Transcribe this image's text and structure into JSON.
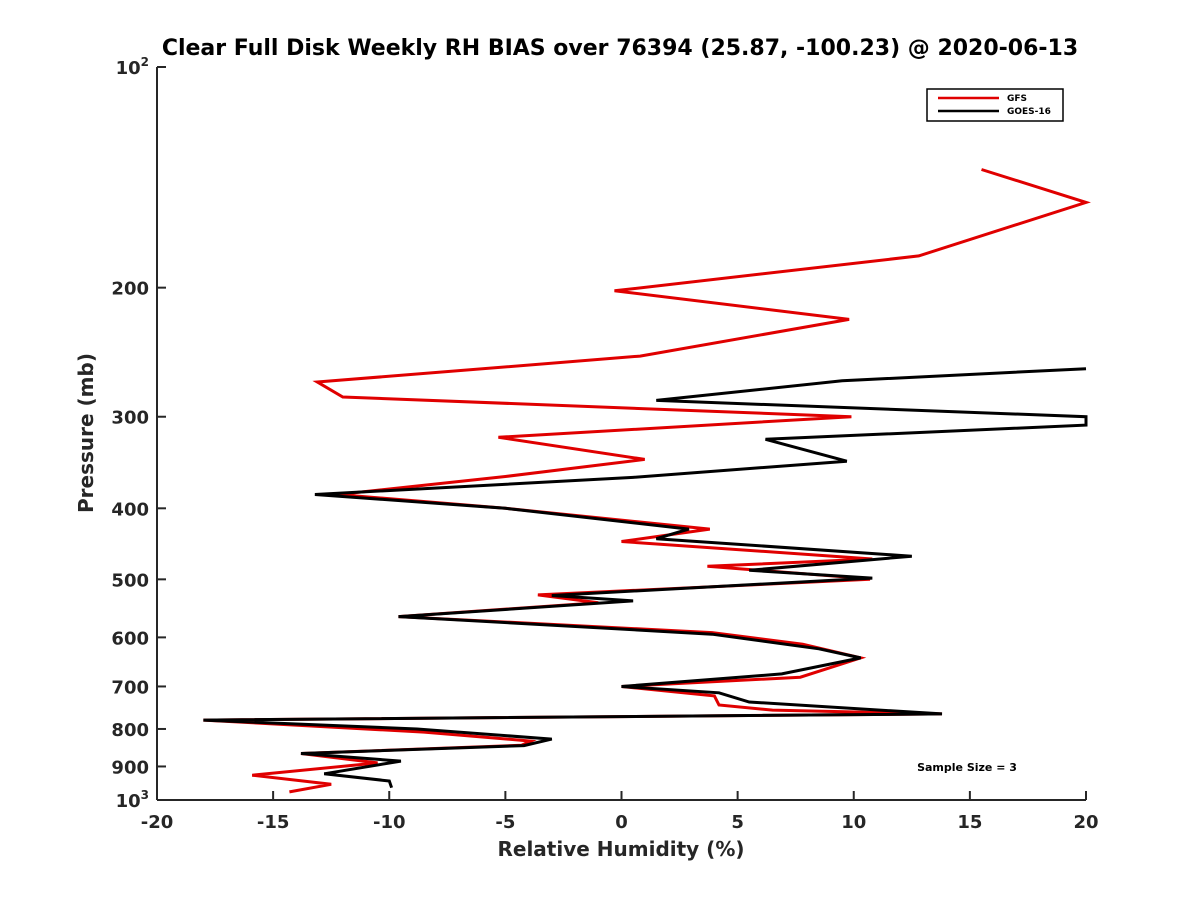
{
  "chart_data": {
    "type": "line",
    "title": "Clear Full Disk Weekly RH BIAS over 76394 (25.87, -100.23) @ 2020-06-13",
    "xlabel": "Relative Humidity (%)",
    "ylabel": "Pressure (mb)",
    "xlim": [
      -20,
      20
    ],
    "ylim": [
      100,
      1000
    ],
    "yscale": "log",
    "y_reversed": true,
    "x_ticks": [
      "-20",
      "-15",
      "-10",
      "-5",
      "0",
      "5",
      "10",
      "15",
      "20"
    ],
    "y_ticks": [
      {
        "value": 100,
        "base": "10",
        "exp": "2"
      },
      {
        "value": 200,
        "label": "200"
      },
      {
        "value": 300,
        "label": "300"
      },
      {
        "value": 400,
        "label": "400"
      },
      {
        "value": 500,
        "label": "500"
      },
      {
        "value": 600,
        "label": "600"
      },
      {
        "value": 700,
        "label": "700"
      },
      {
        "value": 800,
        "label": "800"
      },
      {
        "value": 900,
        "label": "900"
      },
      {
        "value": 1000,
        "base": "10",
        "exp": "3"
      }
    ],
    "legend_position": "top-right",
    "annotation": "Sample Size = 3",
    "series": [
      {
        "name": "GFS",
        "color": "#e00000",
        "points": [
          [
            15.5,
            138
          ],
          [
            20,
            153
          ],
          [
            12.8,
            181
          ],
          [
            -0.3,
            202
          ],
          [
            9.8,
            221
          ],
          [
            0.8,
            248
          ],
          [
            -13.1,
            269
          ],
          [
            -12.0,
            282
          ],
          [
            9.9,
            300
          ],
          [
            -5.3,
            320
          ],
          [
            1.0,
            343
          ],
          [
            -5.0,
            362
          ],
          [
            -12.2,
            383
          ],
          [
            -5.0,
            400
          ],
          [
            3.8,
            427
          ],
          [
            0.0,
            444
          ],
          [
            10.8,
            469
          ],
          [
            3.7,
            480
          ],
          [
            9.9,
            497
          ],
          [
            10.7,
            500
          ],
          [
            -3.6,
            525
          ],
          [
            -1.0,
            538
          ],
          [
            -9.6,
            562
          ],
          [
            3.9,
            591
          ],
          [
            7.8,
            613
          ],
          [
            10.3,
            640
          ],
          [
            7.7,
            680
          ],
          [
            0.0,
            700
          ],
          [
            4.0,
            721
          ],
          [
            4.2,
            742
          ],
          [
            6.5,
            754
          ],
          [
            13.8,
            763
          ],
          [
            -18.0,
            778
          ],
          [
            -8.5,
            808
          ],
          [
            -3.9,
            831
          ],
          [
            -4.3,
            842
          ],
          [
            -13.8,
            864
          ],
          [
            -10.5,
            890
          ],
          [
            -15.9,
            925
          ],
          [
            -12.5,
            952
          ],
          [
            -14.3,
            975
          ]
        ]
      },
      {
        "name": "GOES-16",
        "color": "#000000",
        "points": [
          [
            20,
            258
          ],
          [
            9.5,
            268
          ],
          [
            1.5,
            285
          ],
          [
            20,
            300
          ],
          [
            20,
            308
          ],
          [
            6.2,
            322
          ],
          [
            9.7,
            345
          ],
          [
            0.5,
            363
          ],
          [
            -13.2,
            383
          ],
          [
            -5.0,
            400
          ],
          [
            2.9,
            427
          ],
          [
            1.5,
            440
          ],
          [
            12.5,
            465
          ],
          [
            5.5,
            486
          ],
          [
            10.8,
            498
          ],
          [
            -3.0,
            526
          ],
          [
            0.5,
            535
          ],
          [
            -9.6,
            562
          ],
          [
            3.9,
            594
          ],
          [
            8.5,
            622
          ],
          [
            10.3,
            640
          ],
          [
            6.9,
            673
          ],
          [
            0.0,
            700
          ],
          [
            4.2,
            714
          ],
          [
            5.5,
            735
          ],
          [
            13.8,
            763
          ],
          [
            -18.0,
            778
          ],
          [
            -8.8,
            800
          ],
          [
            -3.0,
            826
          ],
          [
            -4.2,
            843
          ],
          [
            -13.8,
            864
          ],
          [
            -9.5,
            885
          ],
          [
            -12.8,
            921
          ],
          [
            -10.0,
            942
          ],
          [
            -9.9,
            962
          ]
        ]
      }
    ]
  }
}
